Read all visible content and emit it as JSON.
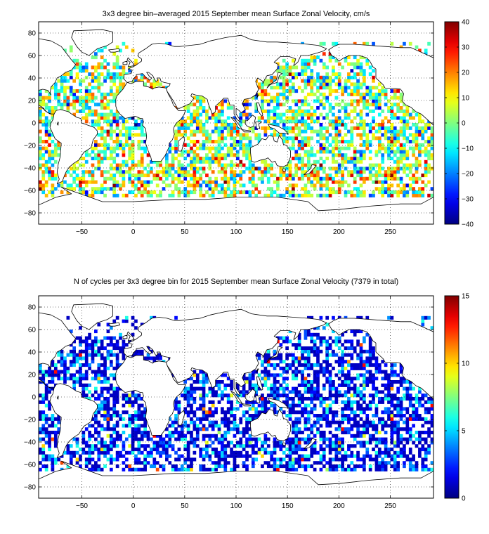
{
  "chart_data": [
    {
      "type": "heatmap",
      "title": "3x3 degree bin–averaged 2015 September mean Surface Zonal Velocity, cm/s",
      "xlabel": "",
      "ylabel": "",
      "xlim": [
        -92,
        292
      ],
      "ylim": [
        -90,
        90
      ],
      "x_ticks": [
        -50,
        0,
        50,
        100,
        150,
        200,
        250
      ],
      "y_ticks": [
        -80,
        -60,
        -40,
        -20,
        0,
        20,
        40,
        60,
        80
      ],
      "x_tick_labels": [
        "−50",
        "0",
        "50",
        "100",
        "150",
        "200",
        "250"
      ],
      "y_tick_labels": [
        "−80",
        "−60",
        "−40",
        "−20",
        "0",
        "20",
        "40",
        "60",
        "80"
      ],
      "grid": true,
      "grid_style": "dotted",
      "bin_size_deg": 3,
      "colorbar": {
        "min": -40,
        "max": 40,
        "ticks": [
          40,
          30,
          20,
          10,
          0,
          -10,
          -20,
          -30,
          -40
        ],
        "tick_labels": [
          "40",
          "30",
          "20",
          "10",
          "0",
          "−10",
          "−20",
          "−30",
          "−40"
        ],
        "colormap": "jet"
      }
    },
    {
      "type": "heatmap",
      "title": "N of cycles per 3x3 degree bin for 2015 September mean Surface Zonal Velocity (7379 in total)",
      "xlabel": "",
      "ylabel": "",
      "xlim": [
        -92,
        292
      ],
      "ylim": [
        -90,
        90
      ],
      "x_ticks": [
        -50,
        0,
        50,
        100,
        150,
        200,
        250
      ],
      "y_ticks": [
        -80,
        -60,
        -40,
        -20,
        0,
        20,
        40,
        60,
        80
      ],
      "x_tick_labels": [
        "−50",
        "0",
        "50",
        "100",
        "150",
        "200",
        "250"
      ],
      "y_tick_labels": [
        "−80",
        "−60",
        "−40",
        "−20",
        "0",
        "20",
        "40",
        "60",
        "80"
      ],
      "grid": true,
      "grid_style": "dotted",
      "bin_size_deg": 3,
      "total_cycles": 7379,
      "colorbar": {
        "min": 0,
        "max": 15,
        "ticks": [
          15,
          10,
          5,
          0
        ],
        "tick_labels": [
          "15",
          "10",
          "5",
          "0"
        ],
        "colormap": "jet"
      }
    }
  ]
}
